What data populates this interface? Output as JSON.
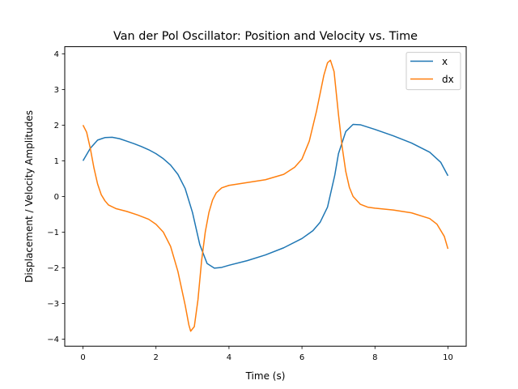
{
  "chart_data": {
    "type": "line",
    "title": "Van der Pol Oscillator: Position and Velocity vs. Time",
    "xlabel": "Time (s)",
    "ylabel": "Displacement / Velocity Amplitudes",
    "xlim": [
      -0.5,
      10.5
    ],
    "ylim": [
      -4.2,
      4.2
    ],
    "x_ticks": [
      0,
      2,
      4,
      6,
      8,
      10
    ],
    "x_tick_labels": [
      "0",
      "2",
      "4",
      "6",
      "8",
      "10"
    ],
    "y_ticks": [
      -4,
      -3,
      -2,
      -1,
      0,
      1,
      2,
      3,
      4
    ],
    "y_tick_labels": [
      "−4",
      "−3",
      "−2",
      "−1",
      "0",
      "1",
      "2",
      "3",
      "4"
    ],
    "grid": false,
    "legend_position": "top-right",
    "series": [
      {
        "name": "x",
        "color": "#1f77b4",
        "points": [
          [
            0,
            1.0
          ],
          [
            0.2,
            1.35
          ],
          [
            0.4,
            1.58
          ],
          [
            0.6,
            1.65
          ],
          [
            0.8,
            1.66
          ],
          [
            1.0,
            1.62
          ],
          [
            1.2,
            1.55
          ],
          [
            1.4,
            1.48
          ],
          [
            1.6,
            1.4
          ],
          [
            1.8,
            1.31
          ],
          [
            2.0,
            1.2
          ],
          [
            2.2,
            1.06
          ],
          [
            2.4,
            0.88
          ],
          [
            2.6,
            0.62
          ],
          [
            2.8,
            0.22
          ],
          [
            3.0,
            -0.45
          ],
          [
            3.2,
            -1.35
          ],
          [
            3.4,
            -1.88
          ],
          [
            3.6,
            -2.01
          ],
          [
            3.8,
            -1.99
          ],
          [
            4.0,
            -1.93
          ],
          [
            4.5,
            -1.8
          ],
          [
            5.0,
            -1.64
          ],
          [
            5.5,
            -1.44
          ],
          [
            6.0,
            -1.18
          ],
          [
            6.3,
            -0.96
          ],
          [
            6.5,
            -0.72
          ],
          [
            6.7,
            -0.3
          ],
          [
            6.9,
            0.6
          ],
          [
            7.0,
            1.2
          ],
          [
            7.2,
            1.82
          ],
          [
            7.4,
            2.02
          ],
          [
            7.6,
            2.01
          ],
          [
            8.0,
            1.88
          ],
          [
            8.5,
            1.7
          ],
          [
            9.0,
            1.5
          ],
          [
            9.5,
            1.24
          ],
          [
            9.8,
            0.96
          ],
          [
            10.0,
            0.58
          ]
        ]
      },
      {
        "name": "dx",
        "color": "#ff7f0e",
        "points": [
          [
            0,
            2.0
          ],
          [
            0.1,
            1.8
          ],
          [
            0.2,
            1.35
          ],
          [
            0.3,
            0.8
          ],
          [
            0.4,
            0.35
          ],
          [
            0.5,
            0.05
          ],
          [
            0.6,
            -0.12
          ],
          [
            0.7,
            -0.24
          ],
          [
            0.9,
            -0.34
          ],
          [
            1.2,
            -0.42
          ],
          [
            1.5,
            -0.52
          ],
          [
            1.8,
            -0.64
          ],
          [
            2.0,
            -0.78
          ],
          [
            2.2,
            -1.0
          ],
          [
            2.4,
            -1.4
          ],
          [
            2.6,
            -2.1
          ],
          [
            2.8,
            -3.05
          ],
          [
            2.9,
            -3.6
          ],
          [
            2.95,
            -3.78
          ],
          [
            3.05,
            -3.65
          ],
          [
            3.15,
            -2.9
          ],
          [
            3.25,
            -1.8
          ],
          [
            3.35,
            -1.0
          ],
          [
            3.45,
            -0.45
          ],
          [
            3.55,
            -0.1
          ],
          [
            3.65,
            0.1
          ],
          [
            3.8,
            0.24
          ],
          [
            4.0,
            0.31
          ],
          [
            4.5,
            0.39
          ],
          [
            5.0,
            0.47
          ],
          [
            5.5,
            0.62
          ],
          [
            5.8,
            0.82
          ],
          [
            6.0,
            1.05
          ],
          [
            6.2,
            1.55
          ],
          [
            6.4,
            2.4
          ],
          [
            6.6,
            3.4
          ],
          [
            6.7,
            3.75
          ],
          [
            6.78,
            3.82
          ],
          [
            6.88,
            3.5
          ],
          [
            7.0,
            2.3
          ],
          [
            7.1,
            1.4
          ],
          [
            7.2,
            0.7
          ],
          [
            7.3,
            0.25
          ],
          [
            7.4,
            0.0
          ],
          [
            7.6,
            -0.22
          ],
          [
            7.8,
            -0.3
          ],
          [
            8.0,
            -0.33
          ],
          [
            8.5,
            -0.38
          ],
          [
            9.0,
            -0.46
          ],
          [
            9.5,
            -0.62
          ],
          [
            9.7,
            -0.78
          ],
          [
            9.9,
            -1.12
          ],
          [
            10.0,
            -1.47
          ]
        ]
      }
    ]
  }
}
